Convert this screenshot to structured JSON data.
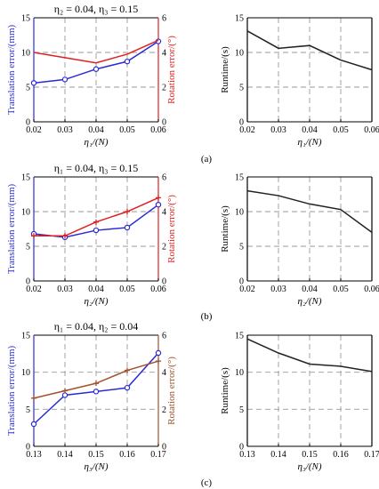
{
  "colors": {
    "translation": "#2b2bd6",
    "rotation": "#e02020",
    "rotation_c": "#a0522d",
    "runtime": "#222222",
    "grid": "#9a9a9a"
  },
  "chart_data": [
    {
      "id": "a_left",
      "type": "line",
      "title": "η₂ = 0.04,  η₃ = 0.15",
      "x": [
        0.02,
        0.03,
        0.04,
        0.05,
        0.06
      ],
      "xticks": [
        "0.02",
        "0.03",
        "0.04",
        "0.05",
        "0.06"
      ],
      "xlabel": "η₁/(N)",
      "ylabel": "Translation error/(mm)",
      "ylim": [
        0,
        15
      ],
      "yticks": [
        "0",
        "5",
        "10",
        "15"
      ],
      "y2label": "Rotation error/(°)",
      "y2lim": [
        0,
        6
      ],
      "y2ticks": [
        "0",
        "2",
        "4",
        "6"
      ],
      "grid": true,
      "series": [
        {
          "axis": "left",
          "values": [
            5.6,
            6.1,
            7.6,
            8.7,
            11.6
          ],
          "markers": true,
          "color_key": "translation"
        },
        {
          "axis": "right",
          "values": [
            4.0,
            3.7,
            3.4,
            3.9,
            4.7
          ],
          "markers": false,
          "color_key": "rotation"
        }
      ]
    },
    {
      "id": "a_right",
      "type": "line",
      "x": [
        0.02,
        0.03,
        0.04,
        0.05,
        0.06
      ],
      "xticks": [
        "0.02",
        "0.03",
        "0.04",
        "0.05",
        "0.06"
      ],
      "xlabel": "η₁/(N)",
      "ylabel": "Runtime/(s)",
      "ylim": [
        0,
        15
      ],
      "yticks": [
        "0",
        "5",
        "10",
        "15"
      ],
      "grid": true,
      "series": [
        {
          "axis": "left",
          "values": [
            13.1,
            10.6,
            11.0,
            8.9,
            7.5
          ],
          "markers": false,
          "color_key": "runtime"
        }
      ]
    },
    {
      "id": "b_left",
      "type": "line",
      "title": "η₁ = 0.04,  η₃ = 0.15",
      "x": [
        0.02,
        0.03,
        0.04,
        0.05,
        0.06
      ],
      "xticks": [
        "0.02",
        "0.03",
        "0.04",
        "0.05",
        "0.06"
      ],
      "xlabel": "η₂/(N)",
      "ylabel": "Translation error/(mm)",
      "ylim": [
        0,
        15
      ],
      "yticks": [
        "0",
        "5",
        "10",
        "15"
      ],
      "y2label": "Rotation error/(°)",
      "y2lim": [
        0,
        6
      ],
      "y2ticks": [
        "0",
        "2",
        "4",
        "6"
      ],
      "grid": true,
      "series": [
        {
          "axis": "left",
          "values": [
            6.8,
            6.3,
            7.3,
            7.7,
            11.0
          ],
          "markers": true,
          "color_key": "translation"
        },
        {
          "axis": "right",
          "values": [
            2.6,
            2.6,
            3.4,
            4.0,
            4.8
          ],
          "markers": true,
          "color_key": "rotation"
        }
      ]
    },
    {
      "id": "b_right",
      "type": "line",
      "x": [
        0.02,
        0.03,
        0.04,
        0.05,
        0.06
      ],
      "xticks": [
        "0.02",
        "0.03",
        "0.04",
        "0.05",
        "0.06"
      ],
      "xlabel": "η₂/(N)",
      "ylabel": "Runtime/(s)",
      "ylim": [
        0,
        15
      ],
      "yticks": [
        "0",
        "5",
        "10",
        "15"
      ],
      "grid": true,
      "series": [
        {
          "axis": "left",
          "values": [
            13.0,
            12.3,
            11.1,
            10.3,
            7.0
          ],
          "markers": false,
          "color_key": "runtime"
        }
      ]
    },
    {
      "id": "c_left",
      "type": "line",
      "title": "η₁ = 0.04,  η₂ = 0.04",
      "x": [
        0.13,
        0.14,
        0.15,
        0.16,
        0.17
      ],
      "xticks": [
        "0.13",
        "0.14",
        "0.15",
        "0.16",
        "0.17"
      ],
      "xlabel": "η₃/(N)",
      "ylabel": "Translation error/(mm)",
      "ylim": [
        0,
        15
      ],
      "yticks": [
        "0",
        "5",
        "10",
        "15"
      ],
      "y2label": "Rotation error/(°)",
      "y2lim": [
        0,
        6
      ],
      "y2ticks": [
        "0",
        "2",
        "4",
        "6"
      ],
      "grid": true,
      "series": [
        {
          "axis": "left",
          "values": [
            3.0,
            6.9,
            7.4,
            7.9,
            12.6
          ],
          "markers": true,
          "color_key": "translation"
        },
        {
          "axis": "right",
          "values": [
            2.6,
            3.0,
            3.4,
            4.1,
            4.6
          ],
          "markers": true,
          "color_key": "rotation_c"
        }
      ]
    },
    {
      "id": "c_right",
      "type": "line",
      "x": [
        0.13,
        0.14,
        0.15,
        0.16,
        0.17
      ],
      "xticks": [
        "0.13",
        "0.14",
        "0.15",
        "0.16",
        "0.17"
      ],
      "xlabel": "η₃/(N)",
      "ylabel": "Runtime/(s)",
      "ylim": [
        0,
        15
      ],
      "yticks": [
        "0",
        "5",
        "10",
        "15"
      ],
      "grid": true,
      "series": [
        {
          "axis": "left",
          "values": [
            14.5,
            12.6,
            11.1,
            10.8,
            10.1
          ],
          "markers": false,
          "color_key": "runtime"
        }
      ]
    }
  ],
  "captions": [
    "(a)",
    "(b)",
    "(c)"
  ]
}
